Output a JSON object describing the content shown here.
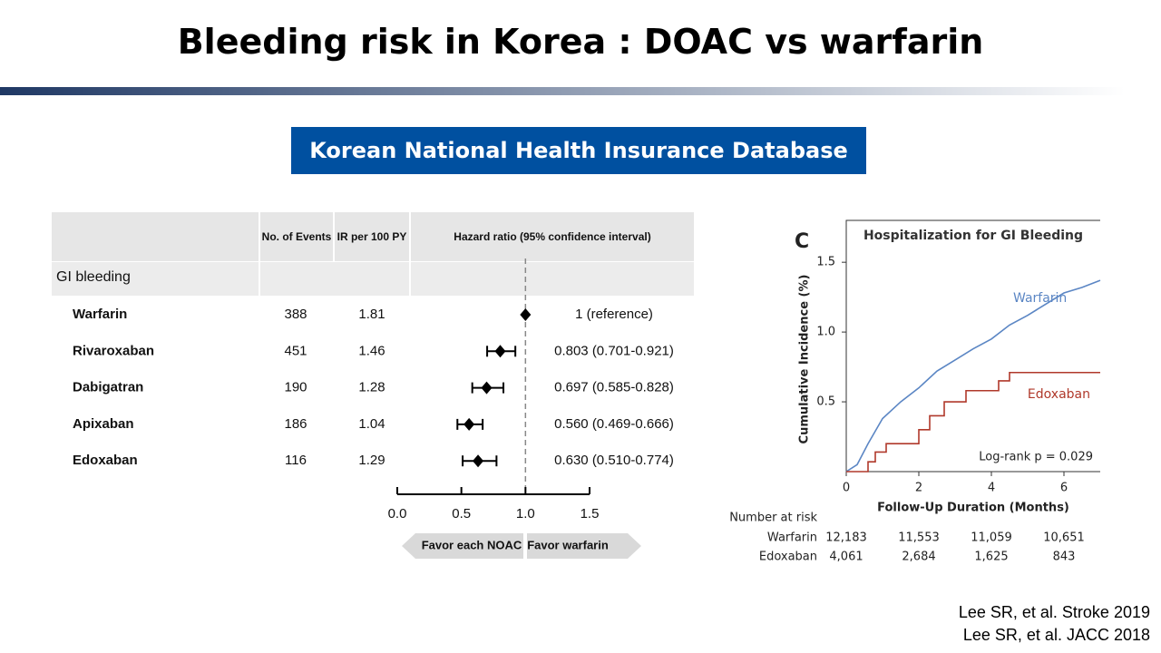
{
  "title": "Bleeding risk in Korea : DOAC vs warfarin",
  "subtitle": "Korean National Health Insurance Database",
  "references": [
    "Lee SR, et al. Stroke 2019",
    "Lee SR, et al.  JACC 2018"
  ],
  "chart_data": [
    {
      "type": "forest",
      "columns": [
        "No. of Events",
        "IR per 100 PY",
        "Hazard ratio (95% confidence interval)"
      ],
      "group": "GI bleeding",
      "categories": [
        "Warfarin",
        "Rivaroxaban",
        "Dabigatran",
        "Apixaban",
        "Edoxaban"
      ],
      "events": [
        388,
        451,
        190,
        186,
        116
      ],
      "ir": [
        1.81,
        1.46,
        1.28,
        1.04,
        1.29
      ],
      "values": [
        1,
        0.803,
        0.697,
        0.56,
        0.63
      ],
      "lower": [
        null,
        0.701,
        0.585,
        0.469,
        0.51
      ],
      "upper": [
        null,
        0.921,
        0.828,
        0.666,
        0.774
      ],
      "value_labels": [
        "1 (reference)",
        "0.803 (0.701-0.921)",
        "0.697 (0.585-0.828)",
        "0.560 (0.469-0.666)",
        "0.630 (0.510-0.774)"
      ],
      "xlim": [
        0,
        1.5
      ],
      "xticks": [
        {
          "value": 0,
          "label": "0.0"
        },
        0.5,
        {
          "value": 1,
          "label": "1.0"
        },
        1.5
      ],
      "reference_line": 1,
      "direction_labels": [
        "Favor each NOAC",
        "Favor warfarin"
      ],
      "color": "#000000"
    },
    {
      "type": "line",
      "panel_label": "C",
      "title": "Hospitalization for GI Bleeding",
      "xlabel": "Follow-Up Duration (Months)",
      "ylabel": "Cumulative Incidence (%)",
      "annotation": "Log-rank p = 0.029",
      "xlim": [
        0,
        7
      ],
      "ylim": [
        0,
        1.8
      ],
      "xticks": [
        0,
        2,
        4,
        6
      ],
      "yticks": [
        0.5,
        {
          "value": 1,
          "label": "1.0"
        },
        1.5
      ],
      "risk_title": "Number at risk",
      "series": [
        {
          "name": "Warfarin",
          "color": "#5b86c4",
          "x": [
            0,
            0.3,
            0.6,
            1,
            1.5,
            2,
            2.5,
            3,
            3.5,
            4,
            4.5,
            5,
            5.5,
            6,
            6.5,
            7
          ],
          "values": [
            0,
            0.05,
            0.2,
            0.38,
            0.5,
            0.6,
            0.72,
            0.8,
            0.88,
            0.95,
            1.05,
            1.12,
            1.2,
            1.28,
            1.32,
            1.37
          ],
          "at_risk": [
            "12,183",
            "11,553",
            "11,059",
            "10,651"
          ]
        },
        {
          "name": "Edoxaban",
          "color": "#b0392b",
          "x": [
            0,
            0.6,
            0.6,
            0.8,
            0.8,
            1.1,
            1.1,
            2.0,
            2.0,
            2.3,
            2.3,
            2.7,
            2.7,
            3.3,
            3.3,
            4.2,
            4.2,
            4.5,
            4.5,
            7
          ],
          "values": [
            0,
            0,
            0.07,
            0.07,
            0.14,
            0.14,
            0.2,
            0.2,
            0.3,
            0.3,
            0.4,
            0.4,
            0.5,
            0.5,
            0.58,
            0.58,
            0.65,
            0.65,
            0.71,
            0.71
          ],
          "at_risk": [
            "4,061",
            "2,684",
            "1,625",
            "843"
          ]
        }
      ]
    }
  ]
}
